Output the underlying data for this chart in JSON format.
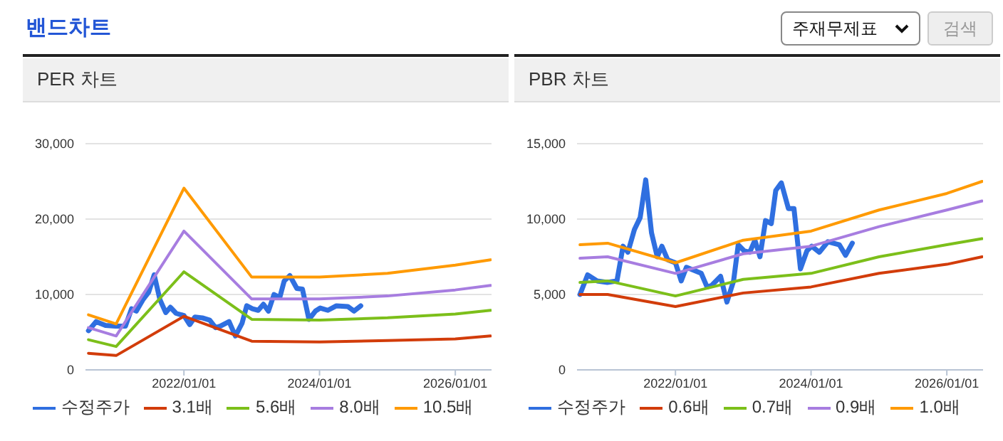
{
  "chart_data": [
    {
      "type": "line",
      "title": "PER 차트",
      "annotations": [
        "밴드차트",
        "주재무제표",
        "검색"
      ],
      "x": [
        "2020-08-05",
        "2021-01-01",
        "2022-01-01",
        "2023-01-01",
        "2024-01-01",
        "2025-01-01",
        "2026-01-01",
        "2026-07-10"
      ],
      "xlim": [
        "2020-07-20",
        "2026-07-15"
      ],
      "xticks": [
        {
          "value": "2022-01-01",
          "label": "2022/01/01"
        },
        {
          "value": "2024-01-01",
          "label": "2024/01/01"
        },
        {
          "value": "2026-01-01",
          "label": "2026/01/01"
        }
      ],
      "ylim": [
        0,
        30000
      ],
      "yticks": [
        0,
        {
          "value": 10000,
          "label": "10,000"
        },
        {
          "value": 20000,
          "label": "20,000"
        },
        {
          "value": 30000,
          "label": "30,000"
        }
      ],
      "grid": "y",
      "legend": "bottom",
      "series": [
        {
          "name": "수정주가",
          "color": "#2f6fe0",
          "x": [
            "2020-08-05",
            "2020-09-15",
            "2020-11-05",
            "2020-12-30",
            "2021-02-20",
            "2021-03-25",
            "2021-04-20",
            "2021-05-25",
            "2021-06-25",
            "2021-07-25",
            "2021-08-25",
            "2021-09-25",
            "2021-10-20",
            "2021-11-20",
            "2022-01-01",
            "2022-02-01",
            "2022-03-01",
            "2022-04-10",
            "2022-05-20",
            "2022-06-20",
            "2022-07-15",
            "2022-09-01",
            "2022-10-05",
            "2022-11-10",
            "2022-12-05",
            "2023-01-05",
            "2023-02-05",
            "2023-03-05",
            "2023-04-01",
            "2023-05-01",
            "2023-06-01",
            "2023-06-25",
            "2023-07-25",
            "2023-09-01",
            "2023-10-01",
            "2023-11-05",
            "2023-12-10",
            "2024-01-05",
            "2024-02-15",
            "2024-04-01",
            "2024-06-01",
            "2024-07-05",
            "2024-08-10"
          ],
          "values": [
            5200,
            6400,
            5900,
            5800,
            5800,
            8100,
            7800,
            9300,
            10300,
            12600,
            9300,
            7600,
            8300,
            7500,
            7200,
            6000,
            7000,
            6900,
            6600,
            5600,
            5800,
            6400,
            4500,
            6200,
            8500,
            8100,
            7900,
            8700,
            7800,
            10000,
            9600,
            11800,
            12500,
            10800,
            10700,
            6700,
            7800,
            8200,
            7900,
            8500,
            8400,
            7800,
            8500
          ]
        },
        {
          "name": "3.1배",
          "color": "#d23c0a",
          "values": [
            2200,
            1900,
            7100,
            3800,
            3700,
            3900,
            4100,
            4500
          ]
        },
        {
          "name": "5.6배",
          "color": "#7cbf1a",
          "values": [
            4000,
            3100,
            13000,
            6700,
            6600,
            6900,
            7400,
            7900
          ]
        },
        {
          "name": "8.0배",
          "color": "#a77de0",
          "values": [
            5600,
            4500,
            18400,
            9400,
            9400,
            9800,
            10600,
            11200
          ]
        },
        {
          "name": "10.5배",
          "color": "#ff9a00",
          "values": [
            7300,
            6100,
            24100,
            12300,
            12300,
            12800,
            13900,
            14600
          ]
        }
      ]
    },
    {
      "type": "line",
      "title": "PBR 차트",
      "x": [
        "2020-08-05",
        "2021-01-01",
        "2022-01-01",
        "2023-01-01",
        "2024-01-01",
        "2025-01-01",
        "2026-01-01",
        "2026-07-10"
      ],
      "xlim": [
        "2020-07-20",
        "2026-07-15"
      ],
      "xticks": [
        {
          "value": "2022-01-01",
          "label": "2022/01/01"
        },
        {
          "value": "2024-01-01",
          "label": "2024/01/01"
        },
        {
          "value": "2026-01-01",
          "label": "2026/01/01"
        }
      ],
      "ylim": [
        0,
        15000
      ],
      "yticks": [
        0,
        {
          "value": 5000,
          "label": "5,000"
        },
        {
          "value": 10000,
          "label": "10,000"
        },
        {
          "value": 15000,
          "label": "15,000"
        }
      ],
      "grid": "y",
      "legend": "bottom",
      "series": [
        {
          "name": "수정주가",
          "color": "#2f6fe0",
          "x": [
            "2020-08-05",
            "2020-09-15",
            "2020-11-05",
            "2020-12-30",
            "2021-02-20",
            "2021-03-25",
            "2021-04-20",
            "2021-05-25",
            "2021-06-25",
            "2021-07-25",
            "2021-08-25",
            "2021-09-25",
            "2021-10-20",
            "2021-11-20",
            "2022-01-01",
            "2022-02-01",
            "2022-03-01",
            "2022-04-10",
            "2022-05-20",
            "2022-06-20",
            "2022-07-15",
            "2022-09-01",
            "2022-10-05",
            "2022-11-10",
            "2022-12-05",
            "2023-01-05",
            "2023-02-05",
            "2023-03-05",
            "2023-04-01",
            "2023-05-01",
            "2023-06-01",
            "2023-06-25",
            "2023-07-25",
            "2023-09-01",
            "2023-10-01",
            "2023-11-05",
            "2023-12-10",
            "2024-01-05",
            "2024-02-15",
            "2024-04-01",
            "2024-06-01",
            "2024-07-05",
            "2024-08-10"
          ],
          "values": [
            5000,
            6300,
            5900,
            5800,
            5900,
            8200,
            7800,
            9300,
            10100,
            12600,
            9100,
            7500,
            8200,
            7300,
            7100,
            5900,
            6800,
            6600,
            6400,
            5500,
            5600,
            6200,
            4500,
            5900,
            8300,
            7900,
            7800,
            8600,
            7500,
            9900,
            9700,
            11900,
            12400,
            10700,
            10700,
            6700,
            7900,
            8200,
            7800,
            8500,
            8300,
            7600,
            8400
          ]
        },
        {
          "name": "0.6배",
          "color": "#d23c0a",
          "values": [
            5000,
            5000,
            4200,
            5100,
            5500,
            6400,
            7000,
            7500
          ]
        },
        {
          "name": "0.7배",
          "color": "#7cbf1a",
          "values": [
            5800,
            5900,
            4900,
            6000,
            6400,
            7500,
            8300,
            8700
          ]
        },
        {
          "name": "0.9배",
          "color": "#a77de0",
          "values": [
            7400,
            7500,
            6400,
            7700,
            8200,
            9500,
            10600,
            11200
          ]
        },
        {
          "name": "1.0배",
          "color": "#ff9a00",
          "values": [
            8300,
            8400,
            7100,
            8600,
            9200,
            10600,
            11700,
            12500
          ]
        }
      ]
    }
  ]
}
